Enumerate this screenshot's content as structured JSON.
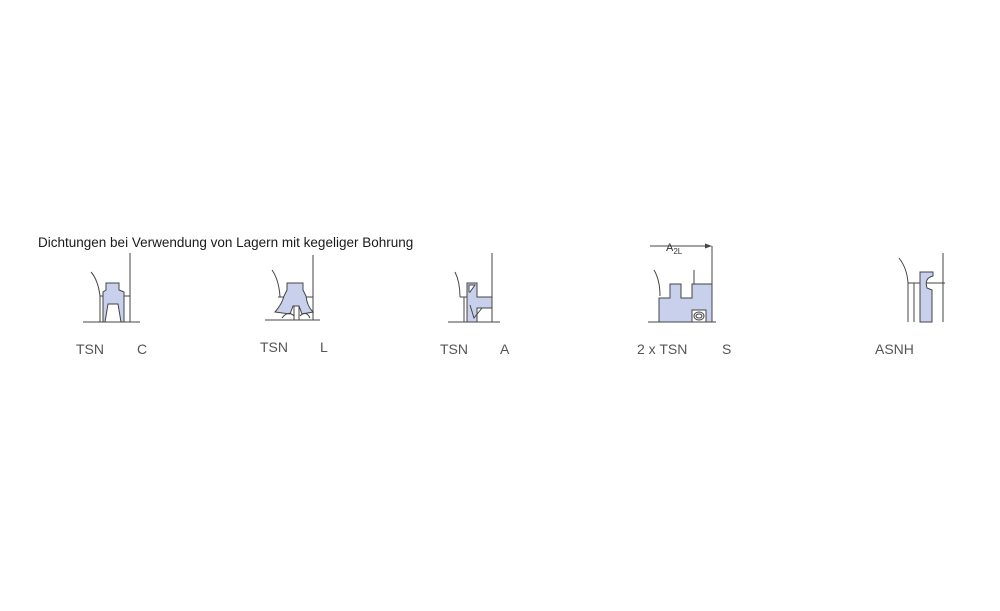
{
  "title": "Dichtungen bei Verwendung von Lagern mit kegeliger Bohrung",
  "fill_color": "#c8d0ec",
  "seals": [
    {
      "housing": "TSN",
      "code": "C"
    },
    {
      "housing": "TSN",
      "code": "L"
    },
    {
      "housing": "TSN",
      "code": "A"
    },
    {
      "housing": "2 x TSN",
      "code": "S"
    },
    {
      "housing": "",
      "code": "ASNH"
    }
  ],
  "dimension": {
    "label": "A",
    "subscript": "2L"
  }
}
